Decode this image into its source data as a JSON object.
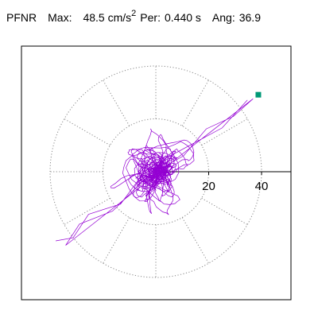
{
  "header": {
    "station": "PFNR",
    "max_label": "Max:",
    "max_value": "48.5",
    "max_unit": "cm/s",
    "max_unit_exp": "2",
    "per_label": "Per:",
    "per_value": "0.440 s",
    "ang_label": "Ang:",
    "ang_value": "36.9"
  },
  "chart_data": {
    "type": "polar-trace",
    "max_acceleration": 48.5,
    "period_s": 0.44,
    "angle_deg": 36.9,
    "radial_ticks": [
      "20",
      "40"
    ],
    "rings": [
      20,
      40
    ],
    "radial_range": [
      0,
      40
    ],
    "spokes_deg": [
      0,
      30,
      60,
      90,
      120,
      150,
      180,
      210,
      240,
      270,
      300,
      330
    ],
    "grid": "dotted",
    "trace_color": "#9400d3",
    "marker_color": "#009977",
    "marker": {
      "r": 48.5,
      "angle_deg": 36.9
    }
  }
}
